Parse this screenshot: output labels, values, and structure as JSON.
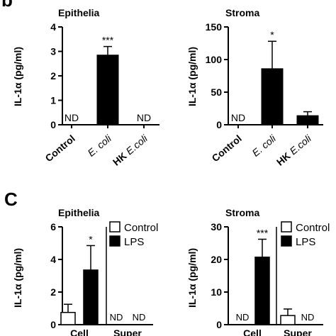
{
  "panel_letters": [
    "b",
    "C"
  ],
  "chart_data": [
    {
      "type": "bar",
      "title": "Epithelia",
      "ylabel": "IL-1α (pg/ml)",
      "ylim": [
        0,
        4
      ],
      "yticks": [
        "0",
        "1",
        "2",
        "3",
        "4"
      ],
      "categories": [
        "Control",
        "E. coli",
        "HK E.coli"
      ],
      "values": [
        null,
        2.85,
        null
      ],
      "errors": [
        null,
        0.35,
        null
      ],
      "bar_colors": [
        "#000000",
        "#000000",
        "#000000"
      ],
      "significance": [
        "",
        "***",
        ""
      ],
      "nd_labels": [
        "ND",
        "",
        "ND"
      ]
    },
    {
      "type": "bar",
      "title": "Stroma",
      "ylabel": "IL-1α (pg/ml)",
      "ylim": [
        0,
        150
      ],
      "yticks": [
        "0",
        "50",
        "100",
        "150"
      ],
      "categories": [
        "Control",
        "E. coli",
        "HK E.coli"
      ],
      "values": [
        null,
        86,
        14
      ],
      "errors": [
        null,
        42,
        6
      ],
      "bar_colors": [
        "#000000",
        "#000000",
        "#000000"
      ],
      "significance": [
        "",
        "*",
        ""
      ],
      "nd_labels": [
        "ND",
        "",
        ""
      ]
    },
    {
      "type": "bar",
      "title": "Epithelia",
      "ylabel": "IL-1α (pg/ml)",
      "ylim": [
        0,
        6
      ],
      "yticks": [
        "0",
        "2",
        "4",
        "6"
      ],
      "groups": [
        "Cell",
        "Super"
      ],
      "series": [
        {
          "name": "Control",
          "color": "#ffffff",
          "values": [
            0.75,
            null
          ],
          "errors": [
            0.5,
            null
          ],
          "nd_labels": [
            "",
            "ND"
          ]
        },
        {
          "name": "LPS",
          "color": "#000000",
          "values": [
            3.35,
            null
          ],
          "errors": [
            1.5,
            null
          ],
          "nd_labels": [
            "",
            "ND"
          ]
        }
      ],
      "significance": [
        "*",
        ""
      ]
    },
    {
      "type": "bar",
      "title": "Stroma",
      "ylabel": "IL-1α (pg/ml)",
      "ylim": [
        0,
        30
      ],
      "yticks": [
        "0",
        "10",
        "20",
        "30"
      ],
      "groups": [
        "Cell",
        "Super"
      ],
      "series": [
        {
          "name": "Control",
          "color": "#ffffff",
          "values": [
            null,
            2.8
          ],
          "errors": [
            null,
            2.0
          ],
          "nd_labels": [
            "ND",
            ""
          ]
        },
        {
          "name": "LPS",
          "color": "#000000",
          "values": [
            20.7,
            null
          ],
          "errors": [
            5.5,
            null
          ],
          "nd_labels": [
            "",
            "ND"
          ]
        }
      ],
      "significance": [
        "***",
        ""
      ]
    }
  ]
}
